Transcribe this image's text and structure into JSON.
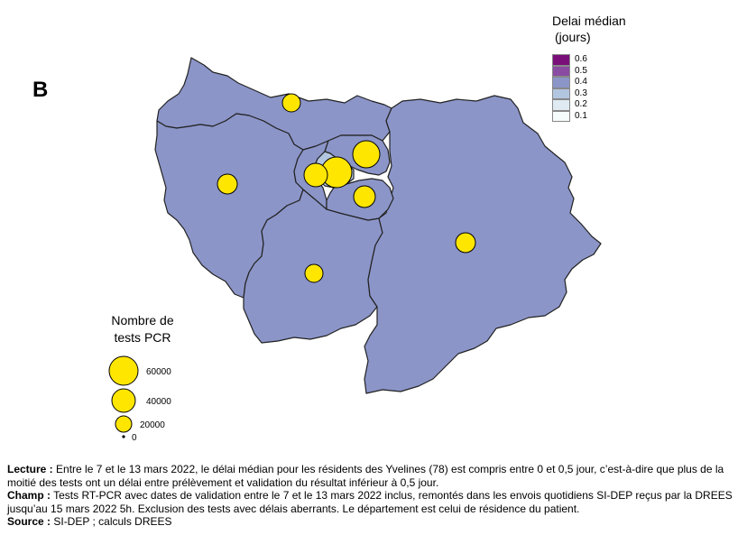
{
  "panel_label": "B",
  "legend": {
    "title_line1": "Delai médian",
    "title_line2": "(jours)",
    "classes": [
      {
        "label": "0.6",
        "color": "#7a0f7a"
      },
      {
        "label": "0.5",
        "color": "#8a4ba3"
      },
      {
        "label": "0.4",
        "color": "#8b95c8"
      },
      {
        "label": "0.3",
        "color": "#b3c6e0"
      },
      {
        "label": "0.2",
        "color": "#dfeaf2"
      },
      {
        "label": "0.1",
        "color": "#f6fbfc"
      }
    ]
  },
  "size_legend": {
    "title_line1": "Nombre de",
    "title_line2": "tests PCR",
    "entries": [
      {
        "label": "60000",
        "value": 60000
      },
      {
        "label": "40000",
        "value": 40000
      },
      {
        "label": "20000",
        "value": 20000
      },
      {
        "label": "0",
        "value": 0
      }
    ]
  },
  "map": {
    "region_fill": "#8b95c8",
    "paris_fill": "#b3c6e0",
    "bubble_color": "#ffe600"
  },
  "footer": {
    "lecture_label": "Lecture :",
    "lecture_text": " Entre le 7 et le 13 mars 2022, le délai médian pour les résidents des Yvelines (78) est compris entre 0 et 0,5 jour, c’est-à-dire que plus de la moitié des tests ont un délai entre prélèvement et validation du résultat inférieur à 0,5 jour.",
    "champ_label": "Champ :",
    "champ_text": " Tests RT-PCR avec dates de validation entre le 7 et le 13 mars 2022 inclus, remontés dans les envois quotidiens SI-DEP reçus par la DREES jusqu’au 15 mars 2022 5h. Exclusion des tests avec délais aberrants. Le département est celui de résidence du patient.",
    "source_label": "Source :",
    "source_text": " SI-DEP ; calculs DREES"
  }
}
